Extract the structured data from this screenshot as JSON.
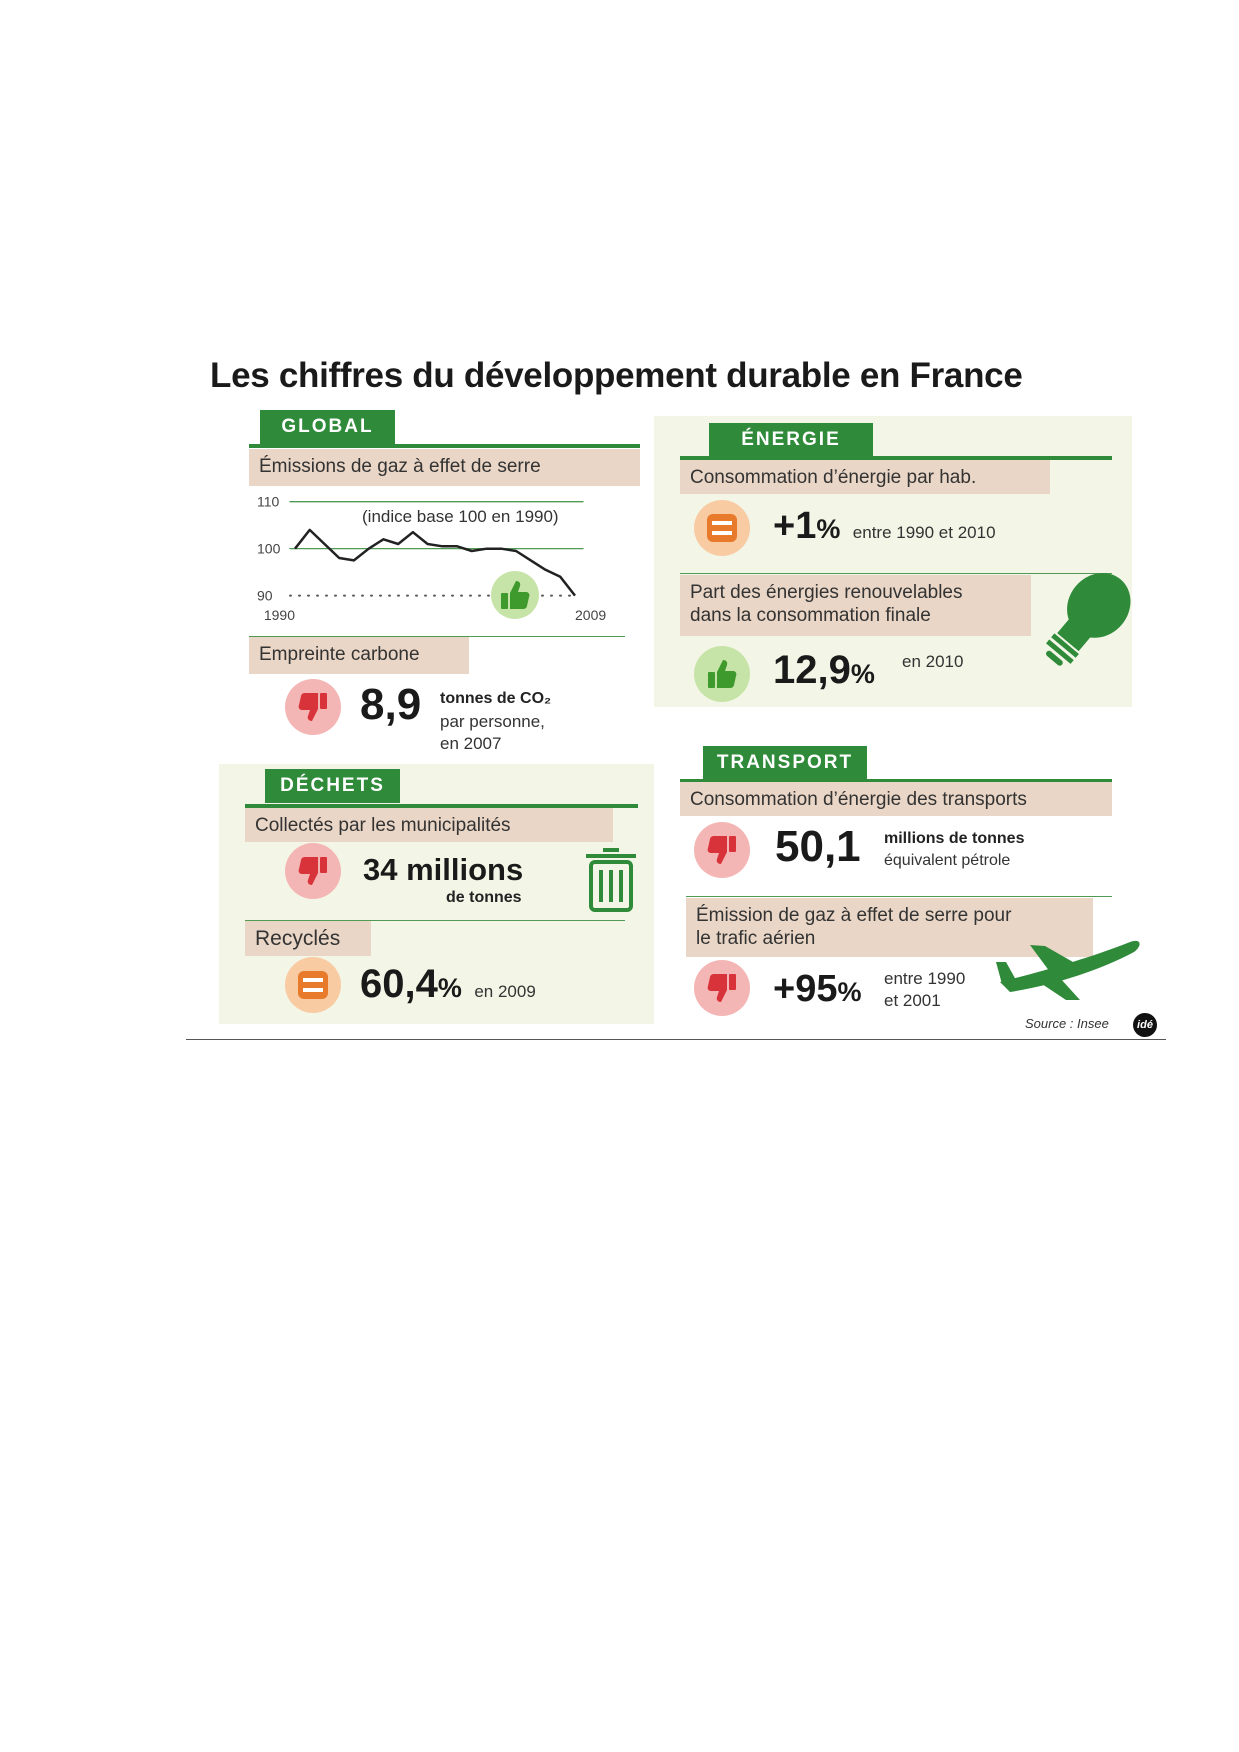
{
  "title": "Les chiffres du développement durable en France",
  "global": {
    "tab": "GLOBAL",
    "emissions_label": "Émissions de gaz à effet de serre",
    "chart": {
      "type": "line",
      "note": "(indice base 100 en 1990)",
      "x": [
        1990,
        1991,
        1992,
        1993,
        1994,
        1995,
        1996,
        1997,
        1998,
        1999,
        2000,
        2001,
        2002,
        2003,
        2004,
        2005,
        2006,
        2007,
        2008,
        2009
      ],
      "values": [
        100,
        104,
        101,
        98,
        97.5,
        100,
        102,
        101,
        103.5,
        101,
        100.5,
        100.5,
        99.5,
        100,
        100,
        99.5,
        97.5,
        95.5,
        94,
        90
      ],
      "color": "#222222",
      "xlim": [
        1990,
        2009
      ],
      "xticks": [
        1990,
        2009
      ],
      "ylim": [
        88,
        111
      ],
      "yticks": [
        110,
        100,
        90
      ]
    },
    "carbon": {
      "label": "Empreinte carbone",
      "value": "8,9",
      "unit": "tonnes de CO₂",
      "detail_1": "par personne,",
      "detail_2": "en 2007"
    }
  },
  "dechets": {
    "tab": "DÉCHETS",
    "collected": {
      "label": "Collectés par les municipalités",
      "value": "34 millions",
      "unit": "de tonnes"
    },
    "recycled": {
      "label": "Recyclés",
      "value": "60,4",
      "percent": "%",
      "detail": "en 2009"
    }
  },
  "energie": {
    "tab": "ÉNERGIE",
    "consumption": {
      "label": "Consommation d’énergie par hab.",
      "value": "+1",
      "percent": "%",
      "detail": "entre 1990 et 2010"
    },
    "renewable": {
      "label_1": "Part des énergies renouvelables",
      "label_2": "dans la consommation finale",
      "value": "12,9",
      "percent": "%",
      "detail": "en 2010"
    }
  },
  "transport": {
    "tab": "TRANSPORT",
    "consumption": {
      "label": "Consommation d’énergie des transports",
      "value": "50,1",
      "unit_1": "millions de tonnes",
      "unit_2": "équivalent pétrole"
    },
    "air": {
      "label_1": "Émission de gaz à effet de serre pour",
      "label_2": "le trafic aérien",
      "value": "+95",
      "percent": "%",
      "detail_1": "entre 1990",
      "detail_2": "et 2001"
    }
  },
  "source": "Source : Insee",
  "logo": "idé"
}
